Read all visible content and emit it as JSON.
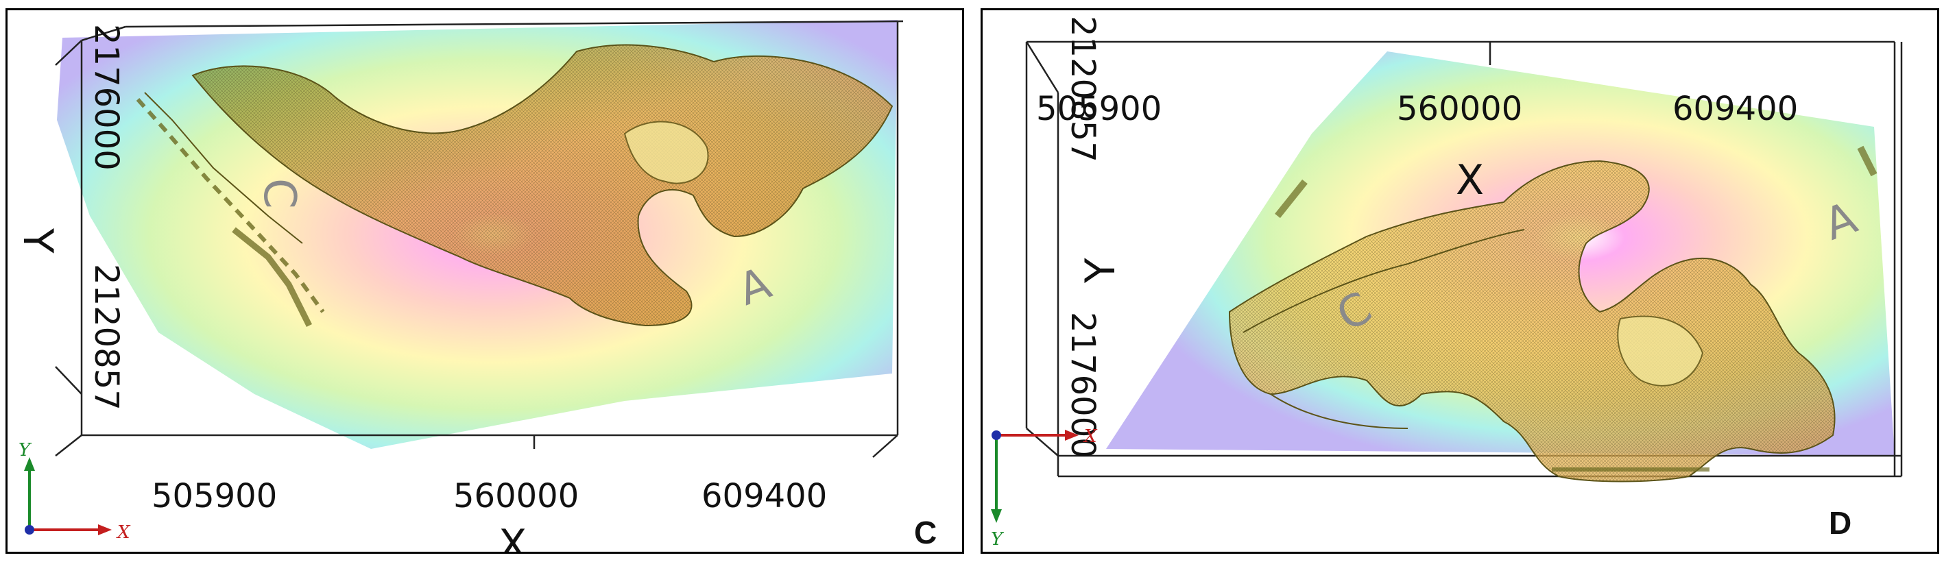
{
  "panel_c": {
    "letter": "C",
    "x_ticks": [
      "505900",
      "560000",
      "609400"
    ],
    "x_axis_label": "X",
    "y_ticks": [
      "2176000",
      "2120857"
    ],
    "y_axis_label": "Y",
    "surface_marks": [
      "C",
      "A"
    ],
    "triad": {
      "y": "Y",
      "x": "X",
      "colors": {
        "x": "#c41e1e",
        "y": "#1a8a2a",
        "z": "#1f2fa8"
      }
    }
  },
  "panel_d": {
    "letter": "D",
    "x_ticks": [
      "505900",
      "560000",
      "609400"
    ],
    "x_axis_label": "X",
    "y_ticks": [
      "2120857",
      "2176000"
    ],
    "y_axis_label": "Y",
    "surface_marks": [
      "C",
      "A"
    ],
    "triad": {
      "y": "Y",
      "x": "X",
      "colors": {
        "x": "#c41e1e",
        "y": "#1a8a2a",
        "z": "#1f2fa8"
      }
    }
  }
}
